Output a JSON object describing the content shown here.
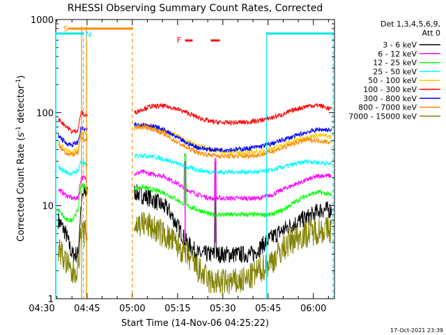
{
  "chart_data": {
    "type": "line",
    "title": "RHESSI Observing Summary Count Rates, Corrected",
    "xlabel": "Start Time (14-Nov-06 04:25:22)",
    "ylabel": "Corrected Count Rate (s",
    "ylabel_sup1": "-1",
    "ylabel_mid": " detector",
    "ylabel_sup2": "-1",
    "ylabel_end": ")",
    "yscale": "log",
    "ylim": [
      1,
      1000
    ],
    "xlim_minutes": [
      4.63,
      97.0
    ],
    "x_ticks": [
      {
        "label": "04:30",
        "minute": 0
      },
      {
        "label": "04:45",
        "minute": 15
      },
      {
        "label": "05:00",
        "minute": 30
      },
      {
        "label": "05:15",
        "minute": 45
      },
      {
        "label": "05:30",
        "minute": 60
      },
      {
        "label": "05:45",
        "minute": 75
      },
      {
        "label": "06:00",
        "minute": 90
      }
    ],
    "y_ticks": [
      {
        "label": "1",
        "value": 1
      },
      {
        "label": "10",
        "value": 10
      },
      {
        "label": "100",
        "value": 100
      },
      {
        "label": "1000",
        "value": 1000
      }
    ],
    "legend": {
      "header1": "Det 1,3,4,5,6,9,",
      "header2": "Att 0",
      "placement": "right"
    },
    "series": [
      {
        "name": "3 - 6 keV",
        "color": "#000000",
        "x": [
          5.5,
          8,
          10,
          12,
          13,
          14,
          15,
          30.8,
          33,
          36,
          38,
          42,
          45,
          48,
          52,
          56,
          60,
          63,
          66,
          70,
          74,
          78,
          82,
          86,
          90,
          92,
          94,
          96
        ],
        "y": [
          7,
          5,
          3,
          3,
          10,
          14,
          14,
          14,
          13,
          12,
          11,
          9,
          6,
          4,
          3,
          3,
          3,
          3,
          3,
          3,
          4,
          5,
          6,
          7,
          8,
          9,
          9,
          9
        ]
      },
      {
        "name": "6 - 12 keV",
        "color": "#ff00ff",
        "x": [
          5.5,
          8,
          10,
          12,
          13,
          14,
          15,
          30.8,
          33,
          36,
          40,
          44,
          48,
          52,
          56,
          60,
          64,
          68,
          72,
          76,
          80,
          84,
          88,
          92,
          96
        ],
        "y": [
          15,
          13,
          12,
          12,
          20,
          20,
          19,
          22,
          23,
          22,
          21,
          18,
          15,
          13,
          12,
          12,
          12,
          12,
          12,
          13,
          15,
          17,
          19,
          21,
          21
        ]
      },
      {
        "name": "12 - 25 keV",
        "color": "#00ff00",
        "x": [
          5.5,
          8,
          10,
          12,
          13,
          14,
          15,
          30.8,
          33,
          36,
          40,
          44,
          48,
          52,
          56,
          60,
          64,
          68,
          72,
          76,
          80,
          84,
          88,
          92,
          96
        ],
        "y": [
          9,
          7,
          7,
          9,
          17,
          16,
          15,
          15,
          16,
          15,
          14,
          12,
          10,
          9,
          8,
          8,
          8,
          8,
          8,
          8,
          9,
          11,
          13,
          14,
          13
        ]
      },
      {
        "name": "25 - 50 keV",
        "color": "#00ffff",
        "x": [
          5.5,
          8,
          10,
          12,
          13,
          14,
          15,
          30.8,
          33,
          36,
          40,
          44,
          48,
          52,
          56,
          60,
          64,
          68,
          72,
          76,
          80,
          84,
          88,
          92,
          96
        ],
        "y": [
          26,
          23,
          22,
          24,
          30,
          28,
          27,
          34,
          35,
          34,
          32,
          29,
          26,
          24,
          23,
          23,
          23,
          23,
          23,
          24,
          26,
          28,
          30,
          29,
          28
        ]
      },
      {
        "name": "50 - 100 keV",
        "color": "#ffcc00",
        "x": [
          5.5,
          8,
          10,
          12,
          13,
          14,
          15,
          30.8,
          33,
          36,
          40,
          44,
          48,
          52,
          56,
          60,
          64,
          68,
          72,
          76,
          80,
          84,
          88,
          92,
          96
        ],
        "y": [
          48,
          40,
          38,
          40,
          62,
          60,
          56,
          70,
          72,
          70,
          65,
          58,
          50,
          44,
          40,
          38,
          37,
          37,
          38,
          41,
          45,
          50,
          55,
          57,
          55
        ]
      },
      {
        "name": "100 - 300 keV",
        "color": "#ff0000",
        "x": [
          5.5,
          8,
          10,
          12,
          13,
          14,
          15,
          30.8,
          33,
          36,
          40,
          44,
          48,
          52,
          56,
          60,
          64,
          68,
          72,
          76,
          80,
          84,
          88,
          92,
          96
        ],
        "y": [
          85,
          72,
          62,
          65,
          102,
          95,
          92,
          100,
          108,
          116,
          118,
          112,
          100,
          88,
          80,
          78,
          78,
          79,
          82,
          88,
          96,
          108,
          118,
          120,
          108
        ]
      },
      {
        "name": "300 - 800 keV",
        "color": "#0000ff",
        "x": [
          5.5,
          8,
          10,
          12,
          13,
          14,
          15,
          30.8,
          33,
          36,
          40,
          44,
          48,
          52,
          56,
          60,
          64,
          68,
          72,
          76,
          80,
          84,
          88,
          92,
          96
        ],
        "y": [
          57,
          47,
          45,
          48,
          68,
          66,
          64,
          74,
          75,
          73,
          66,
          56,
          47,
          42,
          40,
          40,
          40,
          41,
          43,
          46,
          51,
          56,
          62,
          66,
          65
        ]
      },
      {
        "name": "800 - 7000 keV",
        "color": "#ff8800",
        "x": [
          5.5,
          8,
          10,
          12,
          13,
          14,
          15,
          30.8,
          33,
          36,
          40,
          44,
          48,
          52,
          56,
          60,
          64,
          68,
          72,
          76,
          80,
          84,
          88,
          92,
          96
        ],
        "y": [
          44,
          37,
          35,
          37,
          55,
          52,
          50,
          68,
          70,
          68,
          60,
          50,
          42,
          37,
          35,
          34,
          34,
          34,
          35,
          38,
          42,
          47,
          51,
          50,
          48
        ]
      },
      {
        "name": "7000 - 15000 keV",
        "color": "#808000",
        "x": [
          5.5,
          8,
          10,
          12,
          13,
          14,
          15,
          30.8,
          33,
          36,
          40,
          44,
          48,
          52,
          56,
          60,
          64,
          68,
          72,
          76,
          80,
          84,
          88,
          92,
          96
        ],
        "y": [
          3.5,
          2.5,
          1.8,
          2.2,
          5,
          5,
          5,
          6,
          6.5,
          6,
          5,
          4,
          3,
          2,
          1.5,
          1.5,
          1.5,
          1.6,
          2,
          2.5,
          3.5,
          4.5,
          5,
          5.5,
          5.5
        ]
      }
    ],
    "annotations": {
      "saa_label": "S",
      "saa_bar": [
        8.7,
        30
      ],
      "night_label": "N",
      "flare_label": "F",
      "flare_bars": [
        [
          47.5,
          50
        ],
        [
          56,
          59
        ]
      ],
      "attenuator_level": 1.5,
      "night_markers": [
        [
          4.7,
          13.8
        ],
        [
          74.5,
          96.5
        ]
      ],
      "orange_vertical": [
        13.2,
        14.8
      ],
      "orange_dashed": [
        30
      ],
      "cyan_solid": [
        4.7,
        74.5
      ],
      "cyan_dashed": [
        13.8,
        96.5
      ],
      "magenta_spikes": [
        47.5,
        57.5
      ]
    },
    "footer_date": "17-Oct-2021 23:39"
  }
}
